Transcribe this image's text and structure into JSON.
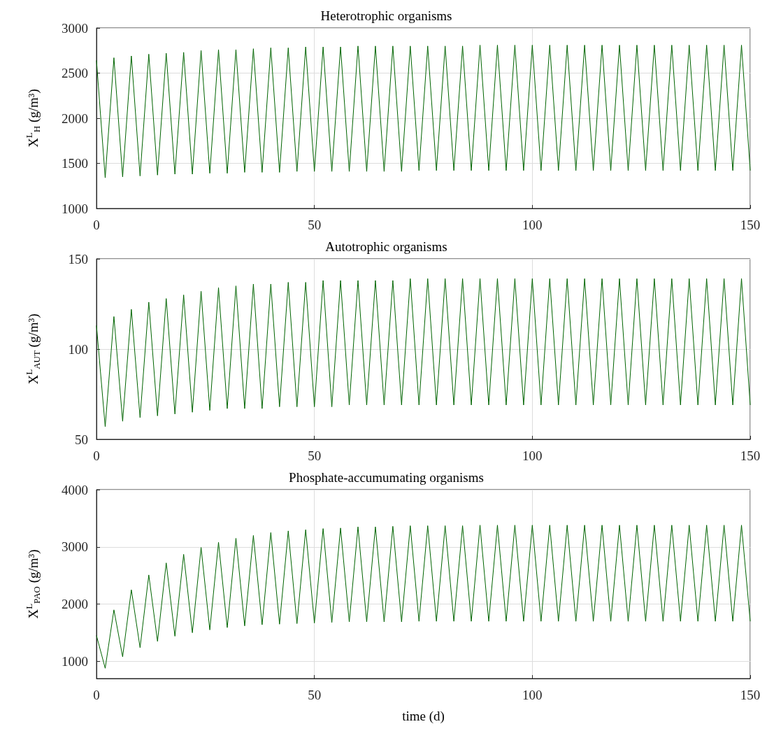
{
  "chart_data": [
    {
      "type": "line",
      "title": "Heterotrophic organisms",
      "ylabel": "X$^{L}$$_{H}$ (g/m³)",
      "xlim": [
        0,
        150
      ],
      "xticks": [
        0,
        50,
        100,
        150
      ],
      "ylim": [
        1000,
        3000
      ],
      "yticks": [
        1000,
        1500,
        2000,
        2500,
        3000
      ],
      "grid": true,
      "marker": "none",
      "line_style": "solid",
      "x": [
        0,
        2,
        4,
        6,
        8,
        10,
        12,
        14,
        16,
        18,
        20,
        22,
        24,
        26,
        28,
        30,
        32,
        34,
        36,
        38,
        40,
        42,
        44,
        46,
        48,
        50,
        52,
        54,
        56,
        58,
        60,
        62,
        64,
        66,
        68,
        70,
        72,
        74,
        76,
        78,
        80,
        82,
        84,
        86,
        88,
        90,
        92,
        94,
        96,
        98,
        100,
        102,
        104,
        106,
        108,
        110,
        112,
        114,
        116,
        118,
        120,
        122,
        124,
        126,
        128,
        130,
        132,
        134,
        136,
        138,
        140,
        142,
        144,
        146,
        148,
        150
      ],
      "series": [
        {
          "color": "#006400",
          "values": [
            2640,
            1340,
            2670,
            1350,
            2690,
            1360,
            2710,
            1370,
            2720,
            1380,
            2730,
            1380,
            2750,
            1390,
            2760,
            1390,
            2760,
            1400,
            2770,
            1400,
            2780,
            1400,
            2780,
            1410,
            2790,
            1410,
            2790,
            1410,
            2790,
            1410,
            2800,
            1410,
            2800,
            1410,
            2800,
            1410,
            2800,
            1420,
            2800,
            1420,
            2800,
            1420,
            2800,
            1420,
            2810,
            1420,
            2810,
            1420,
            2810,
            1420,
            2810,
            1420,
            2810,
            1420,
            2810,
            1420,
            2810,
            1420,
            2810,
            1420,
            2810,
            1420,
            2810,
            1420,
            2810,
            1420,
            2810,
            1420,
            2810,
            1420,
            2810,
            1420,
            2810,
            1420,
            2810,
            1420
          ]
        }
      ]
    },
    {
      "type": "line",
      "title": "Autotrophic organisms",
      "ylabel": "X$^{L}$$_{AUT}$ (g/m³)",
      "xlim": [
        0,
        150
      ],
      "xticks": [
        0,
        50,
        100,
        150
      ],
      "ylim": [
        50,
        150
      ],
      "yticks": [
        50,
        100,
        150
      ],
      "grid": true,
      "marker": "none",
      "line_style": "solid",
      "x": [
        0,
        2,
        4,
        6,
        8,
        10,
        12,
        14,
        16,
        18,
        20,
        22,
        24,
        26,
        28,
        30,
        32,
        34,
        36,
        38,
        40,
        42,
        44,
        46,
        48,
        50,
        52,
        54,
        56,
        58,
        60,
        62,
        64,
        66,
        68,
        70,
        72,
        74,
        76,
        78,
        80,
        82,
        84,
        86,
        88,
        90,
        92,
        94,
        96,
        98,
        100,
        102,
        104,
        106,
        108,
        110,
        112,
        114,
        116,
        118,
        120,
        122,
        124,
        126,
        128,
        130,
        132,
        134,
        136,
        138,
        140,
        142,
        144,
        146,
        148,
        150
      ],
      "series": [
        {
          "color": "#006400",
          "values": [
            113,
            57,
            118,
            60,
            122,
            62,
            126,
            63,
            128,
            64,
            130,
            65,
            132,
            66,
            134,
            67,
            135,
            67,
            136,
            67,
            136,
            68,
            137,
            68,
            137,
            68,
            138,
            68,
            138,
            69,
            138,
            69,
            138,
            69,
            138,
            69,
            139,
            69,
            139,
            69,
            139,
            69,
            139,
            69,
            139,
            69,
            139,
            69,
            139,
            69,
            139,
            69,
            139,
            69,
            139,
            69,
            139,
            69,
            139,
            69,
            139,
            69,
            139,
            69,
            139,
            69,
            139,
            69,
            139,
            69,
            139,
            69,
            139,
            69,
            139,
            69
          ]
        }
      ]
    },
    {
      "type": "line",
      "title": "Phosphate-accumumating organisms",
      "ylabel": "X$^{L}$$_{PAO}$ (g/m³)",
      "xlabel": "time (d)",
      "xlim": [
        0,
        150
      ],
      "xticks": [
        0,
        50,
        100,
        150
      ],
      "ylim": [
        700,
        4000
      ],
      "yticks": [
        1000,
        2000,
        3000,
        4000
      ],
      "grid": true,
      "marker": "none",
      "line_style": "solid",
      "x": [
        0,
        2,
        4,
        6,
        8,
        10,
        12,
        14,
        16,
        18,
        20,
        22,
        24,
        26,
        28,
        30,
        32,
        34,
        36,
        38,
        40,
        42,
        44,
        46,
        48,
        50,
        52,
        54,
        56,
        58,
        60,
        62,
        64,
        66,
        68,
        70,
        72,
        74,
        76,
        78,
        80,
        82,
        84,
        86,
        88,
        90,
        92,
        94,
        96,
        98,
        100,
        102,
        104,
        106,
        108,
        110,
        112,
        114,
        116,
        118,
        120,
        122,
        124,
        126,
        128,
        130,
        132,
        134,
        136,
        138,
        140,
        142,
        144,
        146,
        148,
        150
      ],
      "series": [
        {
          "color": "#006400",
          "values": [
            1450,
            880,
            1900,
            1080,
            2250,
            1240,
            2510,
            1350,
            2720,
            1440,
            2870,
            1500,
            2990,
            1550,
            3080,
            1590,
            3150,
            1620,
            3200,
            1640,
            3250,
            1650,
            3280,
            1660,
            3300,
            1670,
            3320,
            1680,
            3330,
            1690,
            3350,
            1690,
            3350,
            1690,
            3360,
            1690,
            3370,
            1700,
            3370,
            1700,
            3370,
            1700,
            3370,
            1700,
            3380,
            1700,
            3380,
            1700,
            3380,
            1700,
            3380,
            1700,
            3380,
            1700,
            3380,
            1700,
            3380,
            1700,
            3380,
            1700,
            3380,
            1700,
            3380,
            1700,
            3380,
            1700,
            3380,
            1700,
            3380,
            1700,
            3380,
            1700,
            3380,
            1700,
            3380,
            1700
          ]
        }
      ]
    }
  ]
}
